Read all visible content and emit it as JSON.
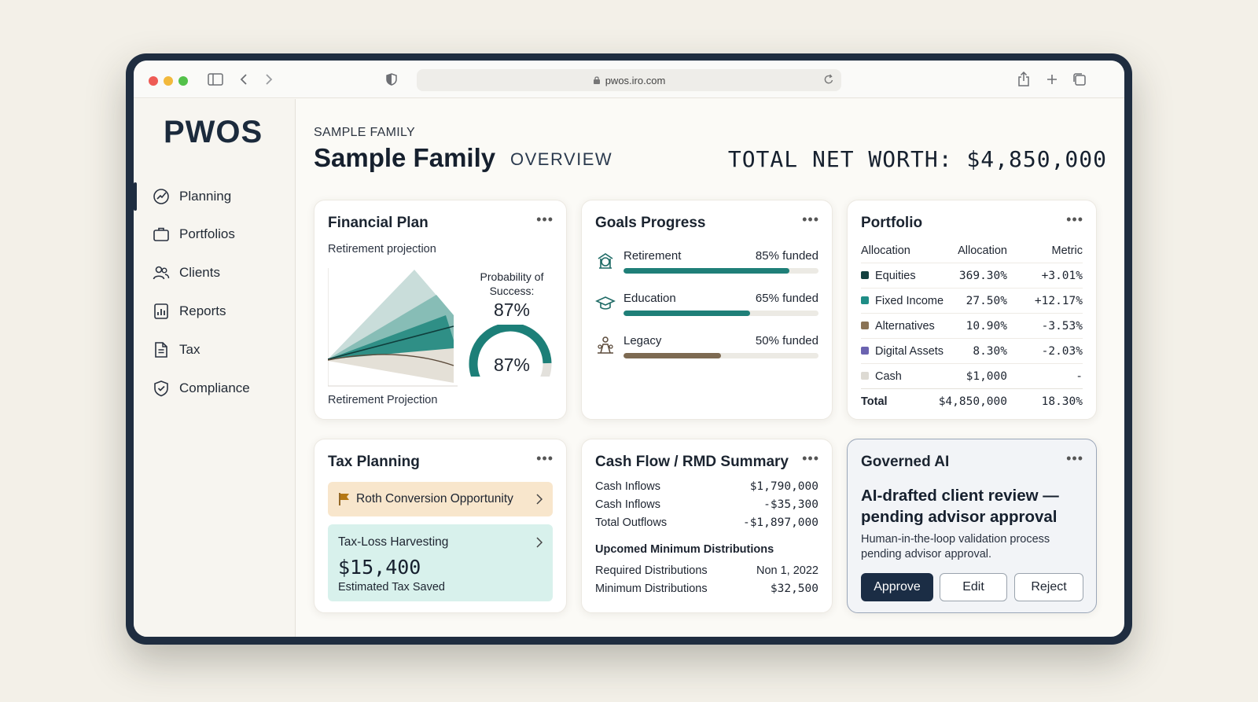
{
  "browser": {
    "url": "pwos.iro.com"
  },
  "sidebar": {
    "logo": "PWOS",
    "items": [
      {
        "label": "Planning",
        "icon": "planning-icon",
        "active": true
      },
      {
        "label": "Portfolios",
        "icon": "briefcase-icon"
      },
      {
        "label": "Clients",
        "icon": "users-icon"
      },
      {
        "label": "Reports",
        "icon": "bar-chart-icon"
      },
      {
        "label": "Tax",
        "icon": "document-icon"
      },
      {
        "label": "Compliance",
        "icon": "shield-check-icon"
      }
    ]
  },
  "header": {
    "eyebrow": "SAMPLE FAMILY",
    "title": "Sample Family",
    "subtitle": "OVERVIEW",
    "net_worth": "TOTAL NET WORTH: $4,850,000"
  },
  "financial_plan": {
    "title": "Financial Plan",
    "subtitle": "Retirement projection",
    "probability_label": "Probability of Success:",
    "probability_value": "87%",
    "gauge_value": "87%",
    "gauge_fraction": 0.87,
    "footer": "Retirement Projection"
  },
  "goals": {
    "title": "Goals Progress",
    "items": [
      {
        "label": "Retirement",
        "value": "85% funded",
        "fraction": 0.85,
        "color": "#1f7f78",
        "icon": "piggy-bank-icon"
      },
      {
        "label": "Education",
        "value": "65% funded",
        "fraction": 0.65,
        "color": "#1f7f78",
        "icon": "graduation-cap-icon"
      },
      {
        "label": "Legacy",
        "value": "50% funded",
        "fraction": 0.5,
        "color": "#7d6a52",
        "icon": "family-icon"
      }
    ]
  },
  "portfolio": {
    "title": "Portfolio",
    "headers": [
      "Allocation",
      "Allocation",
      "Metric"
    ],
    "rows": [
      {
        "name": "Equities",
        "allocation": "369.30%",
        "metric": "+3.01%",
        "color": "#13403f"
      },
      {
        "name": "Fixed Income",
        "allocation": "27.50%",
        "metric": "+12.17%",
        "color": "#1f8d86"
      },
      {
        "name": "Alternatives",
        "allocation": "10.90%",
        "metric": "-3.53%",
        "color": "#8a7355"
      },
      {
        "name": "Digital Assets",
        "allocation": "8.30%",
        "metric": "-2.03%",
        "color": "#6b63b0"
      },
      {
        "name": "Cash",
        "allocation": "$1,000",
        "metric": "-",
        "color": "#dddad3"
      }
    ],
    "total": {
      "name": "Total",
      "allocation": "$4,850,000",
      "metric": "18.30%"
    }
  },
  "tax": {
    "title": "Tax Planning",
    "roth_label": "Roth Conversion Opportunity",
    "tlh_title": "Tax-Loss Harvesting",
    "tlh_amount": "$15,400",
    "tlh_caption": "Estimated Tax Saved"
  },
  "cashflow": {
    "title": "Cash Flow / RMD Summary",
    "rows": [
      {
        "label": "Cash Inflows",
        "value": "$1,790,000"
      },
      {
        "label": "Cash Inflows",
        "value": "-$35,300"
      },
      {
        "label": "Total Outflows",
        "value": "-$1,897,000"
      }
    ],
    "rmd_heading": "Upcomed Minimum Distributions",
    "rmd_rows": [
      {
        "label": "Required Distributions",
        "value": "Non 1, 2022"
      },
      {
        "label": "Minimum Distributions",
        "value": "$32,500"
      }
    ]
  },
  "governed_ai": {
    "title": "Governed AI",
    "headline": "AI-drafted client review — pending advisor approval",
    "description": "Human-in-the-loop validation process pending advisor approval.",
    "approve": "Approve",
    "edit": "Edit",
    "reject": "Reject"
  }
}
